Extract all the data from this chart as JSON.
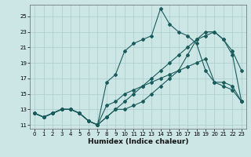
{
  "xlabel": "Humidex (Indice chaleur)",
  "ylabel": "",
  "background_color": "#cce5e5",
  "grid_color": "#aacccc",
  "line_color": "#1a5c5c",
  "xlim": [
    -0.5,
    23.5
  ],
  "ylim": [
    10.5,
    26.5
  ],
  "xticks": [
    0,
    1,
    2,
    3,
    4,
    5,
    6,
    7,
    8,
    9,
    10,
    11,
    12,
    13,
    14,
    15,
    16,
    17,
    18,
    19,
    20,
    21,
    22,
    23
  ],
  "yticks": [
    11,
    13,
    15,
    17,
    19,
    21,
    23,
    25
  ],
  "series": [
    [
      12.5,
      12.0,
      12.5,
      13.0,
      13.0,
      12.5,
      11.5,
      11.0,
      12.0,
      13.0,
      13.0,
      13.5,
      14.0,
      15.0,
      16.0,
      17.0,
      18.0,
      20.0,
      22.0,
      23.0,
      23.0,
      22.0,
      20.5,
      18.0
    ],
    [
      12.5,
      12.0,
      12.5,
      13.0,
      13.0,
      12.5,
      11.5,
      11.0,
      16.5,
      17.5,
      20.5,
      21.5,
      22.0,
      22.5,
      26.0,
      24.0,
      23.0,
      22.5,
      21.5,
      18.0,
      16.5,
      16.0,
      15.5,
      14.0
    ],
    [
      12.5,
      12.0,
      12.5,
      13.0,
      13.0,
      12.5,
      11.5,
      11.0,
      12.0,
      13.0,
      14.0,
      15.0,
      16.0,
      17.0,
      18.0,
      19.0,
      20.0,
      21.0,
      22.0,
      22.5,
      23.0,
      22.0,
      20.0,
      14.0
    ],
    [
      12.5,
      12.0,
      12.5,
      13.0,
      13.0,
      12.5,
      11.5,
      11.0,
      13.5,
      14.0,
      15.0,
      15.5,
      16.0,
      16.5,
      17.0,
      17.5,
      18.0,
      18.5,
      19.0,
      19.5,
      16.5,
      16.5,
      16.0,
      14.0
    ]
  ],
  "xlabel_fontsize": 6.5,
  "xlabel_fontweight": "bold",
  "tick_fontsize": 5,
  "marker_size": 2.0,
  "linewidth": 0.8
}
